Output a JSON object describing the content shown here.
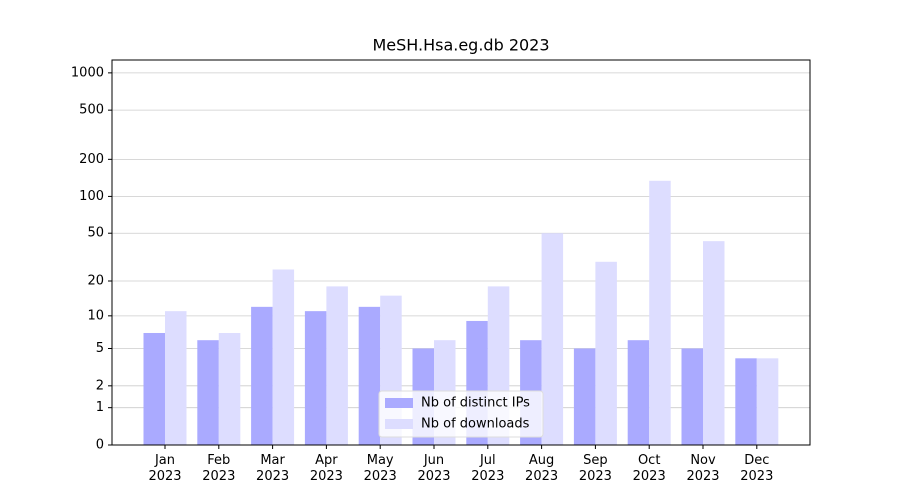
{
  "chart_data": {
    "type": "bar",
    "title": "MeSH.Hsa.eg.db 2023",
    "categories": [
      "Jan\n2023",
      "Feb\n2023",
      "Mar\n2023",
      "Apr\n2023",
      "May\n2023",
      "Jun\n2023",
      "Jul\n2023",
      "Aug\n2023",
      "Sep\n2023",
      "Oct\n2023",
      "Nov\n2023",
      "Dec\n2023"
    ],
    "series": [
      {
        "name": "Nb of distinct IPs",
        "color": "#aaaaff",
        "values": [
          7,
          6,
          12,
          11,
          12,
          5,
          9,
          6,
          5,
          6,
          5,
          4
        ]
      },
      {
        "name": "Nb of downloads",
        "color": "#ddddff",
        "values": [
          11,
          7,
          25,
          18,
          15,
          6,
          18,
          50,
          29,
          134,
          43,
          4
        ]
      }
    ],
    "scale": "log1p",
    "ylim": [
      0,
      1270
    ],
    "yticks": [
      0,
      1,
      2,
      5,
      10,
      20,
      50,
      100,
      200,
      500,
      1000
    ],
    "grid": true,
    "legend": "lower center"
  }
}
